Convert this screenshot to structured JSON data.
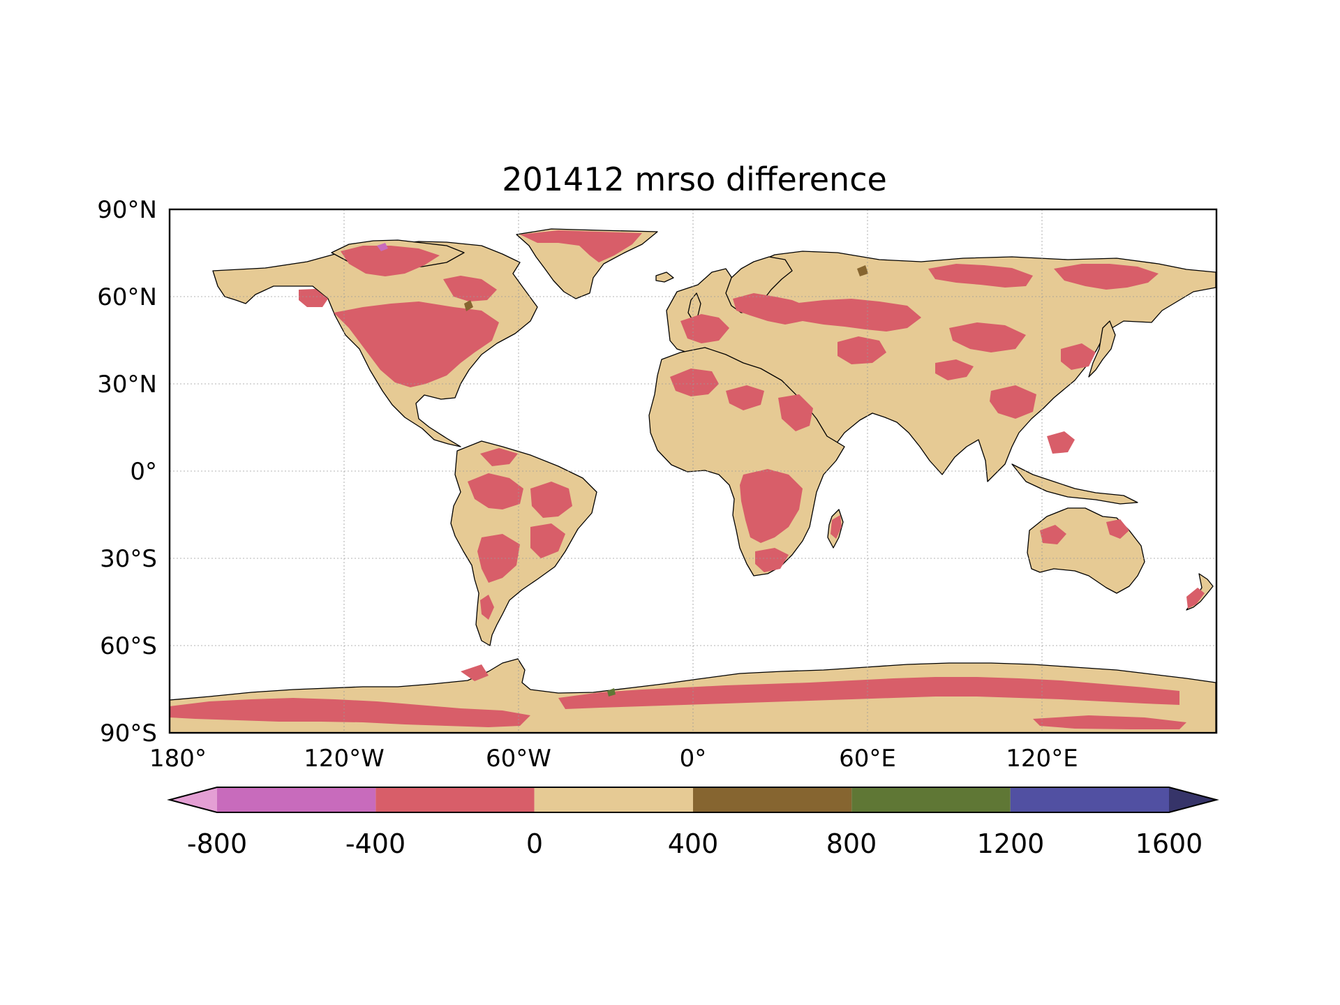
{
  "map": {
    "title": "201412 mrso difference",
    "projection": "PlateCarree",
    "extent": {
      "lon": [
        -180,
        180
      ],
      "lat": [
        -90,
        90
      ]
    },
    "gridlines": true,
    "coastlines": true
  },
  "axes": {
    "y_ticks": [
      {
        "lat": 90,
        "label": "90°N"
      },
      {
        "lat": 60,
        "label": "60°N"
      },
      {
        "lat": 30,
        "label": "30°N"
      },
      {
        "lat": 0,
        "label": "0°"
      },
      {
        "lat": -30,
        "label": "30°S"
      },
      {
        "lat": -60,
        "label": "60°S"
      },
      {
        "lat": -90,
        "label": "90°S"
      }
    ],
    "x_ticks": [
      {
        "lon": -180,
        "label": "180°"
      },
      {
        "lon": -120,
        "label": "120°W"
      },
      {
        "lon": -60,
        "label": "60°W"
      },
      {
        "lon": 0,
        "label": "0°"
      },
      {
        "lon": 60,
        "label": "60°E"
      },
      {
        "lon": 120,
        "label": "120°E"
      }
    ]
  },
  "colorbar": {
    "orientation": "horizontal",
    "extend": "both",
    "boundaries": [
      -800,
      -400,
      0,
      400,
      800,
      1200,
      1600
    ],
    "labels": [
      "-800",
      "-400",
      "0",
      "400",
      "800",
      "1200",
      "1600"
    ],
    "under_color": "#e49fd4",
    "over_color": "#363469",
    "colors": [
      "#c86bbc",
      "#d85e69",
      "#e6ca94",
      "#866530",
      "#5f7735",
      "#5150a2"
    ]
  },
  "field": {
    "dominant_ranges": [
      "-400 to 0",
      "0 to 400"
    ],
    "land_colors": {
      "negative": "#d85e69",
      "positive": "#e6ca94"
    }
  }
}
